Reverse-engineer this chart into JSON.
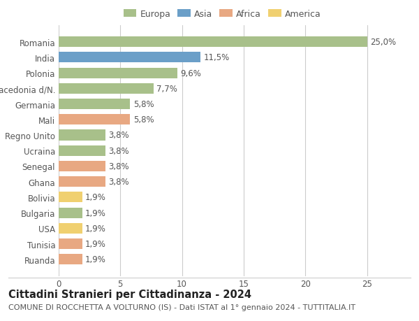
{
  "categories": [
    "Romania",
    "India",
    "Polonia",
    "Macedonia d/N.",
    "Germania",
    "Mali",
    "Regno Unito",
    "Ucraina",
    "Senegal",
    "Ghana",
    "Bolivia",
    "Bulgaria",
    "USA",
    "Tunisia",
    "Ruanda"
  ],
  "values": [
    25.0,
    11.5,
    9.6,
    7.7,
    5.8,
    5.8,
    3.8,
    3.8,
    3.8,
    3.8,
    1.9,
    1.9,
    1.9,
    1.9,
    1.9
  ],
  "labels": [
    "25,0%",
    "11,5%",
    "9,6%",
    "7,7%",
    "5,8%",
    "5,8%",
    "3,8%",
    "3,8%",
    "3,8%",
    "3,8%",
    "1,9%",
    "1,9%",
    "1,9%",
    "1,9%",
    "1,9%"
  ],
  "colors": [
    "#a8c08a",
    "#6b9fc8",
    "#a8c08a",
    "#a8c08a",
    "#a8c08a",
    "#e8a882",
    "#a8c08a",
    "#a8c08a",
    "#e8a882",
    "#e8a882",
    "#f0d070",
    "#a8c08a",
    "#f0d070",
    "#e8a882",
    "#e8a882"
  ],
  "continent_colors": {
    "Europa": "#a8c08a",
    "Asia": "#6b9fc8",
    "Africa": "#e8a882",
    "America": "#f0d070"
  },
  "title": "Cittadini Stranieri per Cittadinanza - 2024",
  "subtitle": "COMUNE DI ROCCHETTA A VOLTURNO (IS) - Dati ISTAT al 1° gennaio 2024 - TUTTITALIA.IT",
  "xlim": [
    0,
    26.5
  ],
  "xticks": [
    0,
    5,
    10,
    15,
    20,
    25
  ],
  "background_color": "#ffffff",
  "bar_height": 0.68,
  "grid_color": "#cccccc",
  "label_fontsize": 8.5,
  "ytick_fontsize": 8.5,
  "xtick_fontsize": 8.5,
  "title_fontsize": 10.5,
  "subtitle_fontsize": 8.0,
  "legend_fontsize": 9.0
}
